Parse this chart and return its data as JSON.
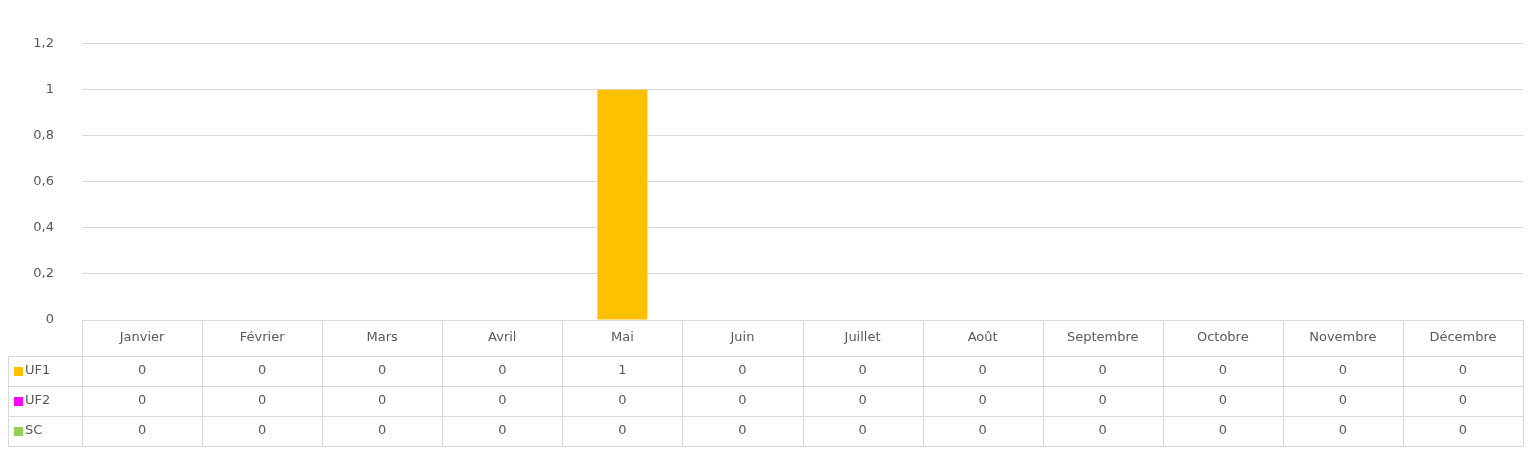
{
  "chart_data": {
    "type": "bar",
    "stacked": true,
    "categories": [
      "Janvier",
      "Février",
      "Mars",
      "Avril",
      "Mai",
      "Juin",
      "Juillet",
      "Août",
      "Septembre",
      "Octobre",
      "Novembre",
      "Décembre"
    ],
    "series": [
      {
        "name": "UF1",
        "color": "#ffc000",
        "values": [
          0,
          0,
          0,
          0,
          1,
          0,
          0,
          0,
          0,
          0,
          0,
          0
        ]
      },
      {
        "name": "UF2",
        "color": "#ff00ff",
        "values": [
          0,
          0,
          0,
          0,
          0,
          0,
          0,
          0,
          0,
          0,
          0,
          0
        ]
      },
      {
        "name": "SC",
        "color": "#92d050",
        "values": [
          0,
          0,
          0,
          0,
          0,
          0,
          0,
          0,
          0,
          0,
          0,
          0
        ]
      }
    ],
    "ylim": [
      0,
      1.2
    ],
    "yticks": [
      0,
      {
        "value": 0.2,
        "label": "0,2"
      },
      {
        "value": 0.4,
        "label": "0,4"
      },
      {
        "value": 0.6,
        "label": "0,6"
      },
      {
        "value": 0.8,
        "label": "0,8"
      },
      1,
      {
        "value": 1.2,
        "label": "1,2"
      }
    ],
    "grid": "y",
    "legend": "bottom",
    "data_labels": true
  }
}
